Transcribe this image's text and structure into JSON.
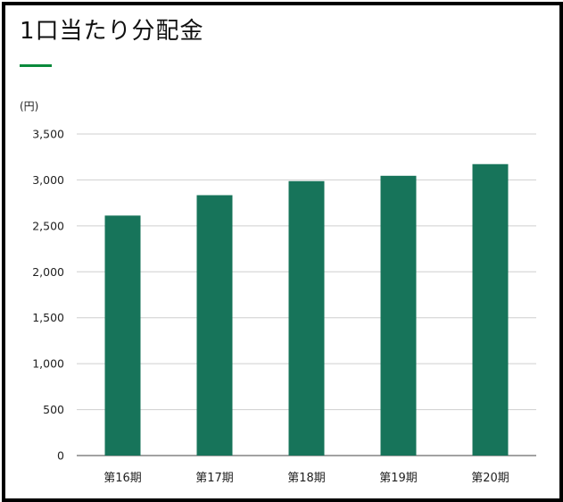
{
  "title": "1口当たり分配金",
  "unit_label": "(円)",
  "colors": {
    "accent": "#0a8a3c",
    "bar": "#17745a",
    "grid": "#cfcfcf",
    "axis": "#444444"
  },
  "chart_data": {
    "type": "bar",
    "categories": [
      "第16期",
      "第17期",
      "第18期",
      "第19期",
      "第20期"
    ],
    "values": [
      2612,
      2834,
      2987,
      3045,
      3172
    ],
    "ylim": [
      0,
      3500
    ],
    "yticks": [
      0,
      500,
      1000,
      1500,
      2000,
      2500,
      3000,
      3500
    ],
    "ytick_labels": [
      "0",
      "500",
      "1,000",
      "1,500",
      "2,000",
      "2,500",
      "3,000",
      "3,500"
    ],
    "grid": true
  }
}
